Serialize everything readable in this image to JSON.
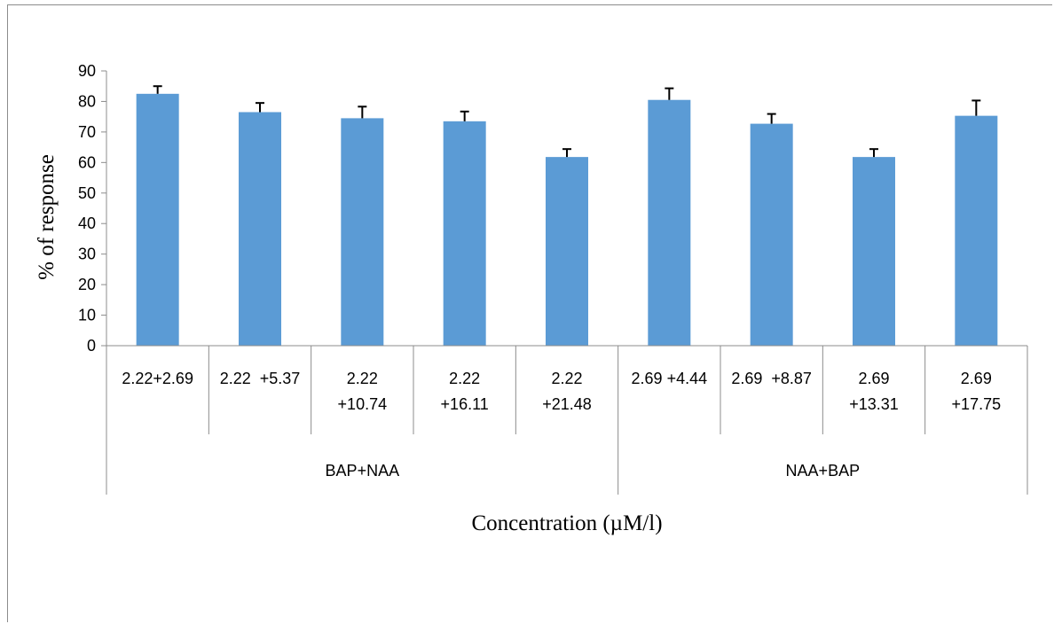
{
  "chart_data": {
    "type": "bar",
    "ylabel": "% of response",
    "xlabel": "Concentration (µM/l)",
    "ylim": [
      0,
      90
    ],
    "yticks": [
      0,
      10,
      20,
      30,
      40,
      50,
      60,
      70,
      80,
      90
    ],
    "grid": false,
    "legend": "none",
    "bar_color": "#5b9bd5",
    "error_color": "#000000",
    "groups": [
      {
        "label": "BAP+NAA",
        "size": 5
      },
      {
        "label": "NAA+BAP",
        "size": 4
      }
    ],
    "categories": [
      [
        "2.22+2.69"
      ],
      [
        "2.22  +5.37"
      ],
      [
        "2.22",
        "+10.74"
      ],
      [
        "2.22",
        "+16.11"
      ],
      [
        "2.22",
        "+21.48"
      ],
      [
        "2.69 +4.44"
      ],
      [
        "2.69  +8.87"
      ],
      [
        "2.69",
        "+13.31"
      ],
      [
        "2.69",
        "+17.75"
      ]
    ],
    "values": [
      82.5,
      76.5,
      74.5,
      73.5,
      61.8,
      80.5,
      72.7,
      61.8,
      75.3
    ],
    "errors": [
      2.5,
      3.0,
      3.8,
      3.2,
      2.6,
      3.8,
      3.2,
      2.6,
      5.0
    ]
  }
}
